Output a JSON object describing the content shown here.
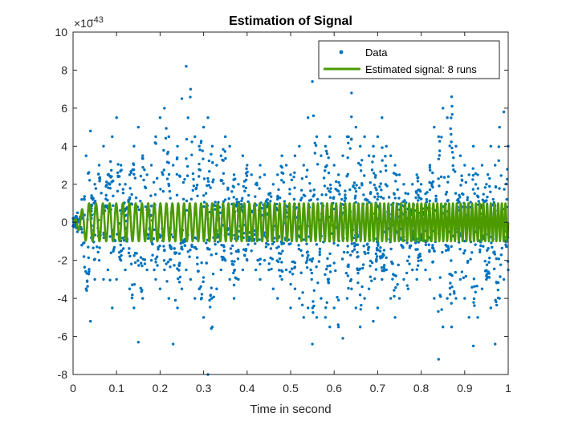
{
  "chart_data": {
    "type": "scatter",
    "title": "Estimation of Signal",
    "xlabel": "Time in second",
    "ylabel": "",
    "exponent_label": "×10",
    "exponent_power": "-43",
    "xlim": [
      0,
      1
    ],
    "ylim": [
      -8,
      10
    ],
    "xticks": [
      "0",
      "0.1",
      "0.2",
      "0.3",
      "0.4",
      "0.5",
      "0.6",
      "0.7",
      "0.8",
      "0.9",
      "1"
    ],
    "yticks": [
      "-8",
      "-6",
      "-4",
      "-2",
      "0",
      "2",
      "4",
      "6",
      "8",
      "10"
    ],
    "grid": false,
    "legend_position": "top-right",
    "legend": [
      "Data",
      "Estimated signal: 8 runs"
    ],
    "colors": {
      "data": "#0072BD",
      "estimate": "#4C9A00",
      "axes": "#262626"
    },
    "series": [
      {
        "name": "Data",
        "mode": "markers",
        "note_values": "envelope of scattered samples (amplitude x 1e-43) sampled every 0.01 s",
        "x": [
          0.0,
          0.01,
          0.02,
          0.03,
          0.04,
          0.05,
          0.06,
          0.07,
          0.08,
          0.09,
          0.1,
          0.11,
          0.12,
          0.13,
          0.14,
          0.15,
          0.16,
          0.17,
          0.18,
          0.19,
          0.2,
          0.21,
          0.22,
          0.23,
          0.24,
          0.25,
          0.26,
          0.27,
          0.28,
          0.29,
          0.3,
          0.31,
          0.32,
          0.33,
          0.34,
          0.35,
          0.36,
          0.37,
          0.38,
          0.39,
          0.4,
          0.41,
          0.42,
          0.43,
          0.44,
          0.45,
          0.46,
          0.47,
          0.48,
          0.49,
          0.5,
          0.51,
          0.52,
          0.53,
          0.54,
          0.55,
          0.56,
          0.57,
          0.58,
          0.59,
          0.6,
          0.61,
          0.62,
          0.63,
          0.64,
          0.65,
          0.66,
          0.67,
          0.68,
          0.69,
          0.7,
          0.71,
          0.72,
          0.73,
          0.74,
          0.75,
          0.76,
          0.77,
          0.78,
          0.79,
          0.8,
          0.81,
          0.82,
          0.83,
          0.84,
          0.85,
          0.86,
          0.87,
          0.88,
          0.89,
          0.9,
          0.91,
          0.92,
          0.93,
          0.94,
          0.95,
          0.96,
          0.97,
          0.98,
          0.99,
          1.0
        ],
        "upper": [
          0.2,
          0.5,
          1.2,
          3.5,
          4.8,
          2.0,
          3.0,
          4.0,
          2.5,
          4.5,
          5.5,
          3.0,
          2.0,
          2.5,
          4.0,
          5.0,
          3.5,
          2.5,
          3.0,
          4.5,
          5.5,
          6.0,
          4.5,
          3.0,
          4.0,
          6.5,
          8.2,
          7.0,
          4.5,
          4.0,
          5.0,
          5.5,
          4.0,
          3.0,
          3.5,
          4.5,
          4.0,
          2.5,
          2.0,
          3.5,
          3.0,
          2.5,
          2.0,
          3.0,
          2.5,
          1.5,
          2.0,
          2.5,
          3.5,
          3.0,
          2.5,
          3.5,
          4.0,
          3.0,
          5.5,
          7.4,
          4.5,
          3.5,
          4.0,
          4.5,
          3.0,
          2.5,
          3.5,
          4.5,
          6.8,
          5.0,
          4.0,
          4.5,
          3.5,
          4.0,
          4.5,
          5.5,
          4.0,
          3.5,
          3.0,
          2.5,
          2.0,
          1.5,
          2.0,
          2.5,
          2.0,
          1.5,
          3.0,
          5.0,
          4.5,
          6.0,
          5.5,
          6.6,
          4.0,
          3.5,
          3.0,
          2.5,
          4.0,
          2.5,
          3.0,
          2.0,
          4.0,
          3.0,
          5.0,
          5.8,
          4.0
        ],
        "lower": [
          -0.2,
          -0.5,
          -1.2,
          -3.5,
          -5.2,
          -3.0,
          -2.0,
          -3.0,
          -2.5,
          -4.5,
          -3.0,
          -2.0,
          -2.5,
          -3.5,
          -4.5,
          -6.3,
          -4.0,
          -2.5,
          -2.0,
          -3.0,
          -3.5,
          -2.5,
          -4.0,
          -6.4,
          -4.5,
          -3.5,
          -2.5,
          -3.0,
          -4.0,
          -3.5,
          -5.0,
          -8.0,
          -5.5,
          -3.5,
          -2.5,
          -2.0,
          -3.0,
          -4.0,
          -3.0,
          -2.5,
          -2.0,
          -1.5,
          -2.5,
          -3.0,
          -2.0,
          -2.5,
          -3.5,
          -4.0,
          -3.0,
          -2.5,
          -4.5,
          -3.5,
          -4.0,
          -5.0,
          -4.5,
          -6.4,
          -5.0,
          -4.0,
          -5.0,
          -5.5,
          -4.5,
          -5.5,
          -6.1,
          -4.0,
          -3.5,
          -4.5,
          -5.5,
          -4.0,
          -3.5,
          -5.2,
          -4.5,
          -3.0,
          -2.5,
          -4.0,
          -5.0,
          -4.0,
          -3.0,
          -3.5,
          -2.5,
          -3.0,
          -2.0,
          -2.5,
          -3.0,
          -4.0,
          -7.2,
          -5.5,
          -4.0,
          -5.5,
          -4.0,
          -3.0,
          -4.0,
          -5.0,
          -6.5,
          -5.0,
          -3.5,
          -3.0,
          -4.5,
          -6.4,
          -4.0,
          -3.0,
          -2.5
        ]
      },
      {
        "name": "Estimated signal: 8 runs",
        "mode": "line",
        "note_values": "sinusoid of amplitude 1 (x 1e-43); frequency rises from about 60 to 120 cycles across 0-1 s",
        "amplitude": 1,
        "freq_start": 60,
        "freq_end": 120
      }
    ]
  }
}
